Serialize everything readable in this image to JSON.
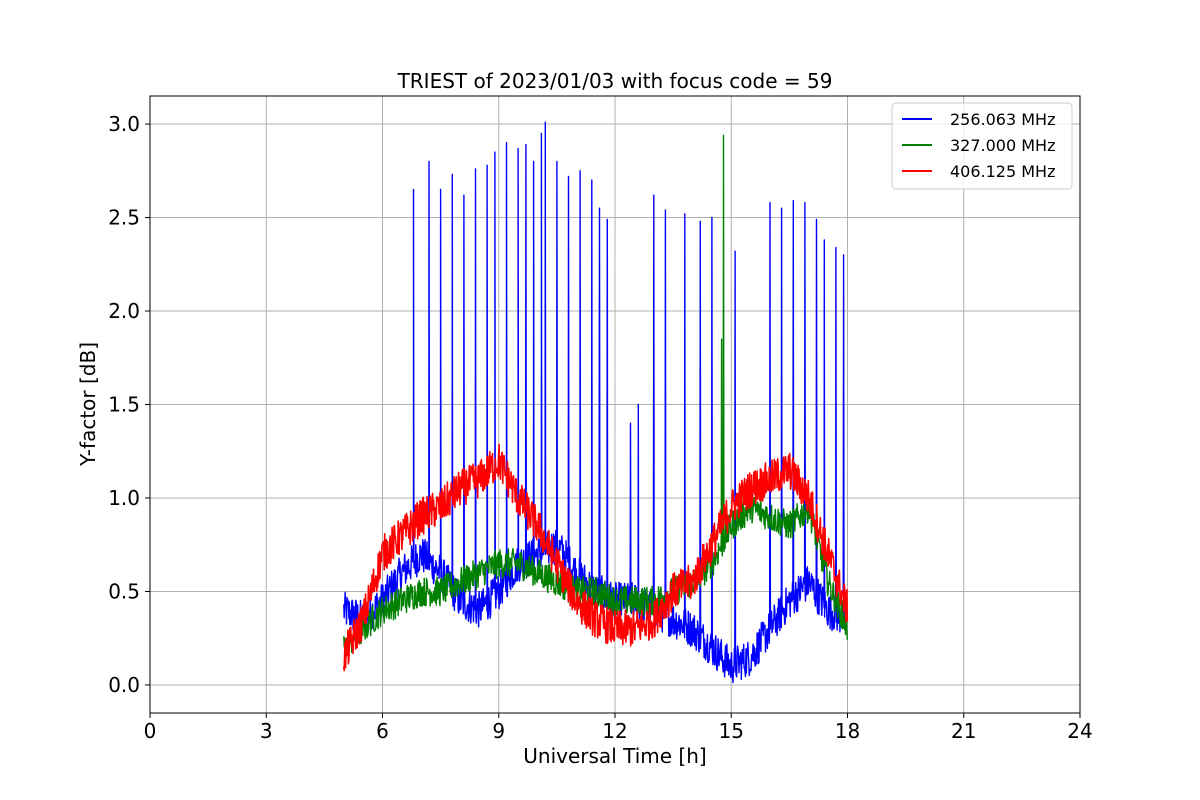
{
  "chart_data": {
    "type": "line",
    "title": "TRIEST of 2023/01/03 with focus code = 59",
    "xlabel": "Universal Time [h]",
    "ylabel": "Y-factor [dB]",
    "xlim": [
      0,
      24
    ],
    "ylim": [
      -0.15,
      3.15
    ],
    "xticks": [
      0,
      3,
      6,
      9,
      12,
      15,
      18,
      21,
      24
    ],
    "yticks": [
      0.0,
      0.5,
      1.0,
      1.5,
      2.0,
      2.5,
      3.0
    ],
    "ytick_labels": [
      "0.0",
      "0.5",
      "1.0",
      "1.5",
      "2.0",
      "2.5",
      "3.0"
    ],
    "grid": true,
    "legend_position": "top-right",
    "series": [
      {
        "name": "256.063 MHz",
        "color": "#0000ff",
        "x": [
          5.0,
          5.5,
          6.0,
          6.5,
          7.0,
          7.5,
          8.0,
          8.5,
          9.0,
          9.5,
          10.0,
          10.5,
          11.0,
          11.5,
          12.0,
          12.5,
          13.0,
          13.5,
          14.0,
          14.5,
          15.0,
          15.5,
          16.0,
          16.5,
          17.0,
          17.5,
          18.0
        ],
        "values": [
          0.4,
          0.35,
          0.45,
          0.6,
          0.7,
          0.6,
          0.45,
          0.4,
          0.5,
          0.65,
          0.7,
          0.75,
          0.6,
          0.5,
          0.45,
          0.45,
          0.4,
          0.35,
          0.3,
          0.2,
          0.1,
          0.15,
          0.3,
          0.45,
          0.55,
          0.4,
          0.35
        ],
        "spikes": [
          {
            "x": 6.8,
            "y": 2.65
          },
          {
            "x": 7.2,
            "y": 2.8
          },
          {
            "x": 7.5,
            "y": 2.65
          },
          {
            "x": 7.8,
            "y": 2.73
          },
          {
            "x": 8.1,
            "y": 2.62
          },
          {
            "x": 8.4,
            "y": 2.76
          },
          {
            "x": 8.7,
            "y": 2.78
          },
          {
            "x": 8.9,
            "y": 2.85
          },
          {
            "x": 9.2,
            "y": 2.9
          },
          {
            "x": 9.5,
            "y": 2.87
          },
          {
            "x": 9.7,
            "y": 2.89
          },
          {
            "x": 9.9,
            "y": 2.8
          },
          {
            "x": 10.1,
            "y": 2.95
          },
          {
            "x": 10.2,
            "y": 3.01
          },
          {
            "x": 10.5,
            "y": 2.8
          },
          {
            "x": 10.8,
            "y": 2.72
          },
          {
            "x": 11.1,
            "y": 2.75
          },
          {
            "x": 11.4,
            "y": 2.7
          },
          {
            "x": 11.6,
            "y": 2.55
          },
          {
            "x": 11.8,
            "y": 2.49
          },
          {
            "x": 12.4,
            "y": 1.4
          },
          {
            "x": 12.6,
            "y": 1.5
          },
          {
            "x": 13.0,
            "y": 2.62
          },
          {
            "x": 13.3,
            "y": 2.54
          },
          {
            "x": 13.8,
            "y": 2.52
          },
          {
            "x": 14.2,
            "y": 2.48
          },
          {
            "x": 14.5,
            "y": 2.5
          },
          {
            "x": 15.1,
            "y": 2.32
          },
          {
            "x": 16.0,
            "y": 2.58
          },
          {
            "x": 16.3,
            "y": 2.55
          },
          {
            "x": 16.6,
            "y": 2.59
          },
          {
            "x": 16.9,
            "y": 2.58
          },
          {
            "x": 17.2,
            "y": 2.49
          },
          {
            "x": 17.4,
            "y": 2.38
          },
          {
            "x": 17.7,
            "y": 2.34
          },
          {
            "x": 17.9,
            "y": 2.3
          }
        ]
      },
      {
        "name": "327.000 MHz",
        "color": "#008000",
        "x": [
          5.0,
          5.5,
          6.0,
          6.5,
          7.0,
          7.5,
          8.0,
          8.5,
          9.0,
          9.5,
          10.0,
          10.5,
          11.0,
          11.5,
          12.0,
          12.5,
          13.0,
          13.5,
          14.0,
          14.5,
          15.0,
          15.5,
          16.0,
          16.5,
          17.0,
          17.5,
          18.0
        ],
        "values": [
          0.2,
          0.3,
          0.4,
          0.45,
          0.5,
          0.5,
          0.55,
          0.6,
          0.65,
          0.65,
          0.6,
          0.55,
          0.5,
          0.5,
          0.45,
          0.45,
          0.45,
          0.5,
          0.55,
          0.65,
          0.85,
          0.95,
          0.9,
          0.85,
          0.95,
          0.55,
          0.3
        ],
        "spikes": [
          {
            "x": 14.8,
            "y": 2.94
          },
          {
            "x": 14.75,
            "y": 1.85
          }
        ]
      },
      {
        "name": "406.125 MHz",
        "color": "#ff0000",
        "x": [
          5.0,
          5.5,
          6.0,
          6.5,
          7.0,
          7.5,
          8.0,
          8.5,
          9.0,
          9.5,
          10.0,
          10.5,
          11.0,
          11.5,
          12.0,
          12.5,
          13.0,
          13.5,
          14.0,
          14.5,
          15.0,
          15.5,
          16.0,
          16.5,
          17.0,
          17.5,
          18.0
        ],
        "values": [
          0.15,
          0.35,
          0.7,
          0.8,
          0.9,
          0.95,
          1.05,
          1.1,
          1.2,
          1.0,
          0.85,
          0.65,
          0.45,
          0.35,
          0.3,
          0.3,
          0.35,
          0.5,
          0.55,
          0.75,
          0.95,
          1.05,
          1.1,
          1.15,
          1.0,
          0.7,
          0.4
        ]
      }
    ]
  }
}
